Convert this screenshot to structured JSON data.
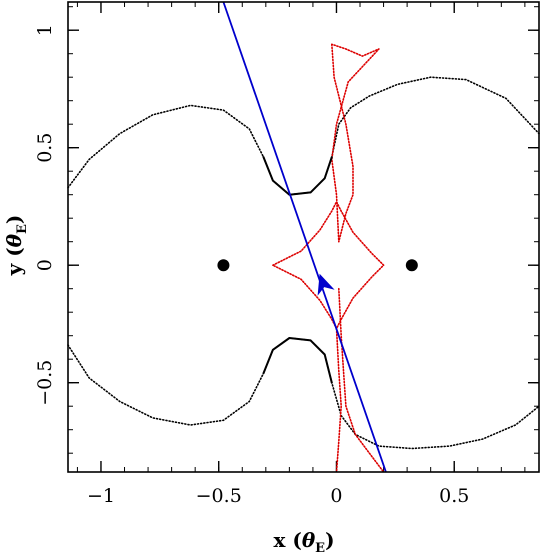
{
  "chart_data": {
    "type": "scatter",
    "xlabel": "x (θE)",
    "ylabel": "y (θE)",
    "xlabel_parts": {
      "prefix": "x (",
      "symbol": "θ",
      "subscript": "E",
      "suffix": ")"
    },
    "ylabel_parts": {
      "prefix": "y (",
      "symbol": "θ",
      "subscript": "E",
      "suffix": ")"
    },
    "xlim": [
      -1.14,
      0.86
    ],
    "ylim": [
      -0.88,
      1.12
    ],
    "x_ticks": [
      {
        "value": -1,
        "label": "−1"
      },
      {
        "value": -0.5,
        "label": "−0.5"
      },
      {
        "value": 0,
        "label": "0"
      },
      {
        "value": 0.5,
        "label": "0.5"
      }
    ],
    "y_ticks": [
      {
        "value": -0.5,
        "label": "−0.5"
      },
      {
        "value": 0,
        "label": "0"
      },
      {
        "value": 0.5,
        "label": "0.5"
      },
      {
        "value": 1,
        "label": "1"
      }
    ],
    "minor_step": 0.1,
    "colors": {
      "lens": "#000000",
      "critical": "#000000",
      "caustic": "#dd0000",
      "trajectory": "#0000cc"
    },
    "lens_positions": [
      {
        "x": -0.48,
        "y": 0
      },
      {
        "x": 0.32,
        "y": 0
      }
    ],
    "trajectory": {
      "start": {
        "x": -0.48,
        "y": 1.12
      },
      "end": {
        "x": 0.21,
        "y": -0.88
      },
      "arrow_at": {
        "x": -0.055,
        "y": -0.085
      }
    },
    "critical_curve_outer": [
      {
        "x": -1.14,
        "y": 0.33
      },
      {
        "x": -1.05,
        "y": 0.45
      },
      {
        "x": -0.92,
        "y": 0.56
      },
      {
        "x": -0.78,
        "y": 0.64
      },
      {
        "x": -0.62,
        "y": 0.68
      },
      {
        "x": -0.48,
        "y": 0.66
      },
      {
        "x": -0.37,
        "y": 0.58
      },
      {
        "x": -0.31,
        "y": 0.46
      },
      {
        "x": -0.27,
        "y": 0.36
      },
      {
        "x": -0.2,
        "y": 0.3
      },
      {
        "x": -0.11,
        "y": 0.31
      },
      {
        "x": -0.05,
        "y": 0.37
      },
      {
        "x": -0.02,
        "y": 0.46
      },
      {
        "x": 0.01,
        "y": 0.6
      },
      {
        "x": 0.06,
        "y": 0.67
      },
      {
        "x": 0.14,
        "y": 0.72
      },
      {
        "x": 0.26,
        "y": 0.77
      },
      {
        "x": 0.4,
        "y": 0.8
      },
      {
        "x": 0.55,
        "y": 0.79
      },
      {
        "x": 0.72,
        "y": 0.71
      },
      {
        "x": 0.86,
        "y": 0.56
      }
    ],
    "critical_curve_outer_lower": [
      {
        "x": -1.14,
        "y": -0.34
      },
      {
        "x": -1.05,
        "y": -0.48
      },
      {
        "x": -0.92,
        "y": -0.58
      },
      {
        "x": -0.78,
        "y": -0.65
      },
      {
        "x": -0.62,
        "y": -0.68
      },
      {
        "x": -0.48,
        "y": -0.66
      },
      {
        "x": -0.37,
        "y": -0.58
      },
      {
        "x": -0.31,
        "y": -0.46
      },
      {
        "x": -0.27,
        "y": -0.36
      },
      {
        "x": -0.2,
        "y": -0.31
      },
      {
        "x": -0.11,
        "y": -0.32
      },
      {
        "x": -0.05,
        "y": -0.38
      },
      {
        "x": -0.02,
        "y": -0.5
      },
      {
        "x": 0.02,
        "y": -0.64
      },
      {
        "x": 0.08,
        "y": -0.72
      },
      {
        "x": 0.18,
        "y": -0.77
      },
      {
        "x": 0.32,
        "y": -0.78
      },
      {
        "x": 0.48,
        "y": -0.77
      },
      {
        "x": 0.62,
        "y": -0.74
      },
      {
        "x": 0.76,
        "y": -0.68
      },
      {
        "x": 0.86,
        "y": -0.6
      }
    ],
    "caustic_center": [
      {
        "x": -0.27,
        "y": 0.0
      },
      {
        "x": -0.15,
        "y": 0.06
      },
      {
        "x": -0.07,
        "y": 0.15
      },
      {
        "x": -0.02,
        "y": 0.23
      },
      {
        "x": 0.0,
        "y": 0.27
      },
      {
        "x": 0.02,
        "y": 0.23
      },
      {
        "x": 0.07,
        "y": 0.14
      },
      {
        "x": 0.15,
        "y": 0.05
      },
      {
        "x": 0.2,
        "y": 0.0
      },
      {
        "x": 0.15,
        "y": -0.05
      },
      {
        "x": 0.07,
        "y": -0.14
      },
      {
        "x": 0.02,
        "y": -0.23
      },
      {
        "x": 0.0,
        "y": -0.27
      },
      {
        "x": -0.02,
        "y": -0.23
      },
      {
        "x": -0.07,
        "y": -0.15
      },
      {
        "x": -0.15,
        "y": -0.06
      },
      {
        "x": -0.27,
        "y": 0.0
      }
    ],
    "caustic_upper": [
      {
        "x": -0.02,
        "y": 0.94
      },
      {
        "x": -0.01,
        "y": 0.8
      },
      {
        "x": 0.04,
        "y": 0.6
      },
      {
        "x": 0.07,
        "y": 0.42
      },
      {
        "x": 0.07,
        "y": 0.3
      },
      {
        "x": 0.04,
        "y": 0.22
      },
      {
        "x": 0.01,
        "y": 0.1
      },
      {
        "x": 0.0,
        "y": 0.3
      },
      {
        "x": -0.02,
        "y": 0.45
      },
      {
        "x": -0.0,
        "y": 0.6
      },
      {
        "x": 0.05,
        "y": 0.78
      },
      {
        "x": 0.18,
        "y": 0.92
      },
      {
        "x": 0.11,
        "y": 0.89
      },
      {
        "x": 0.04,
        "y": 0.92
      },
      {
        "x": -0.02,
        "y": 0.94
      }
    ],
    "caustic_lower": [
      {
        "x": 0.01,
        "y": -0.1
      },
      {
        "x": 0.02,
        "y": -0.3
      },
      {
        "x": 0.03,
        "y": -0.45
      },
      {
        "x": 0.04,
        "y": -0.6
      },
      {
        "x": 0.08,
        "y": -0.72
      },
      {
        "x": 0.14,
        "y": -0.8
      },
      {
        "x": 0.2,
        "y": -0.88
      }
    ],
    "caustic_lower_left": [
      {
        "x": 0.0,
        "y": -0.27
      },
      {
        "x": 0.01,
        "y": -0.45
      },
      {
        "x": 0.02,
        "y": -0.6
      },
      {
        "x": 0.01,
        "y": -0.75
      },
      {
        "x": 0.0,
        "y": -0.88
      }
    ]
  }
}
